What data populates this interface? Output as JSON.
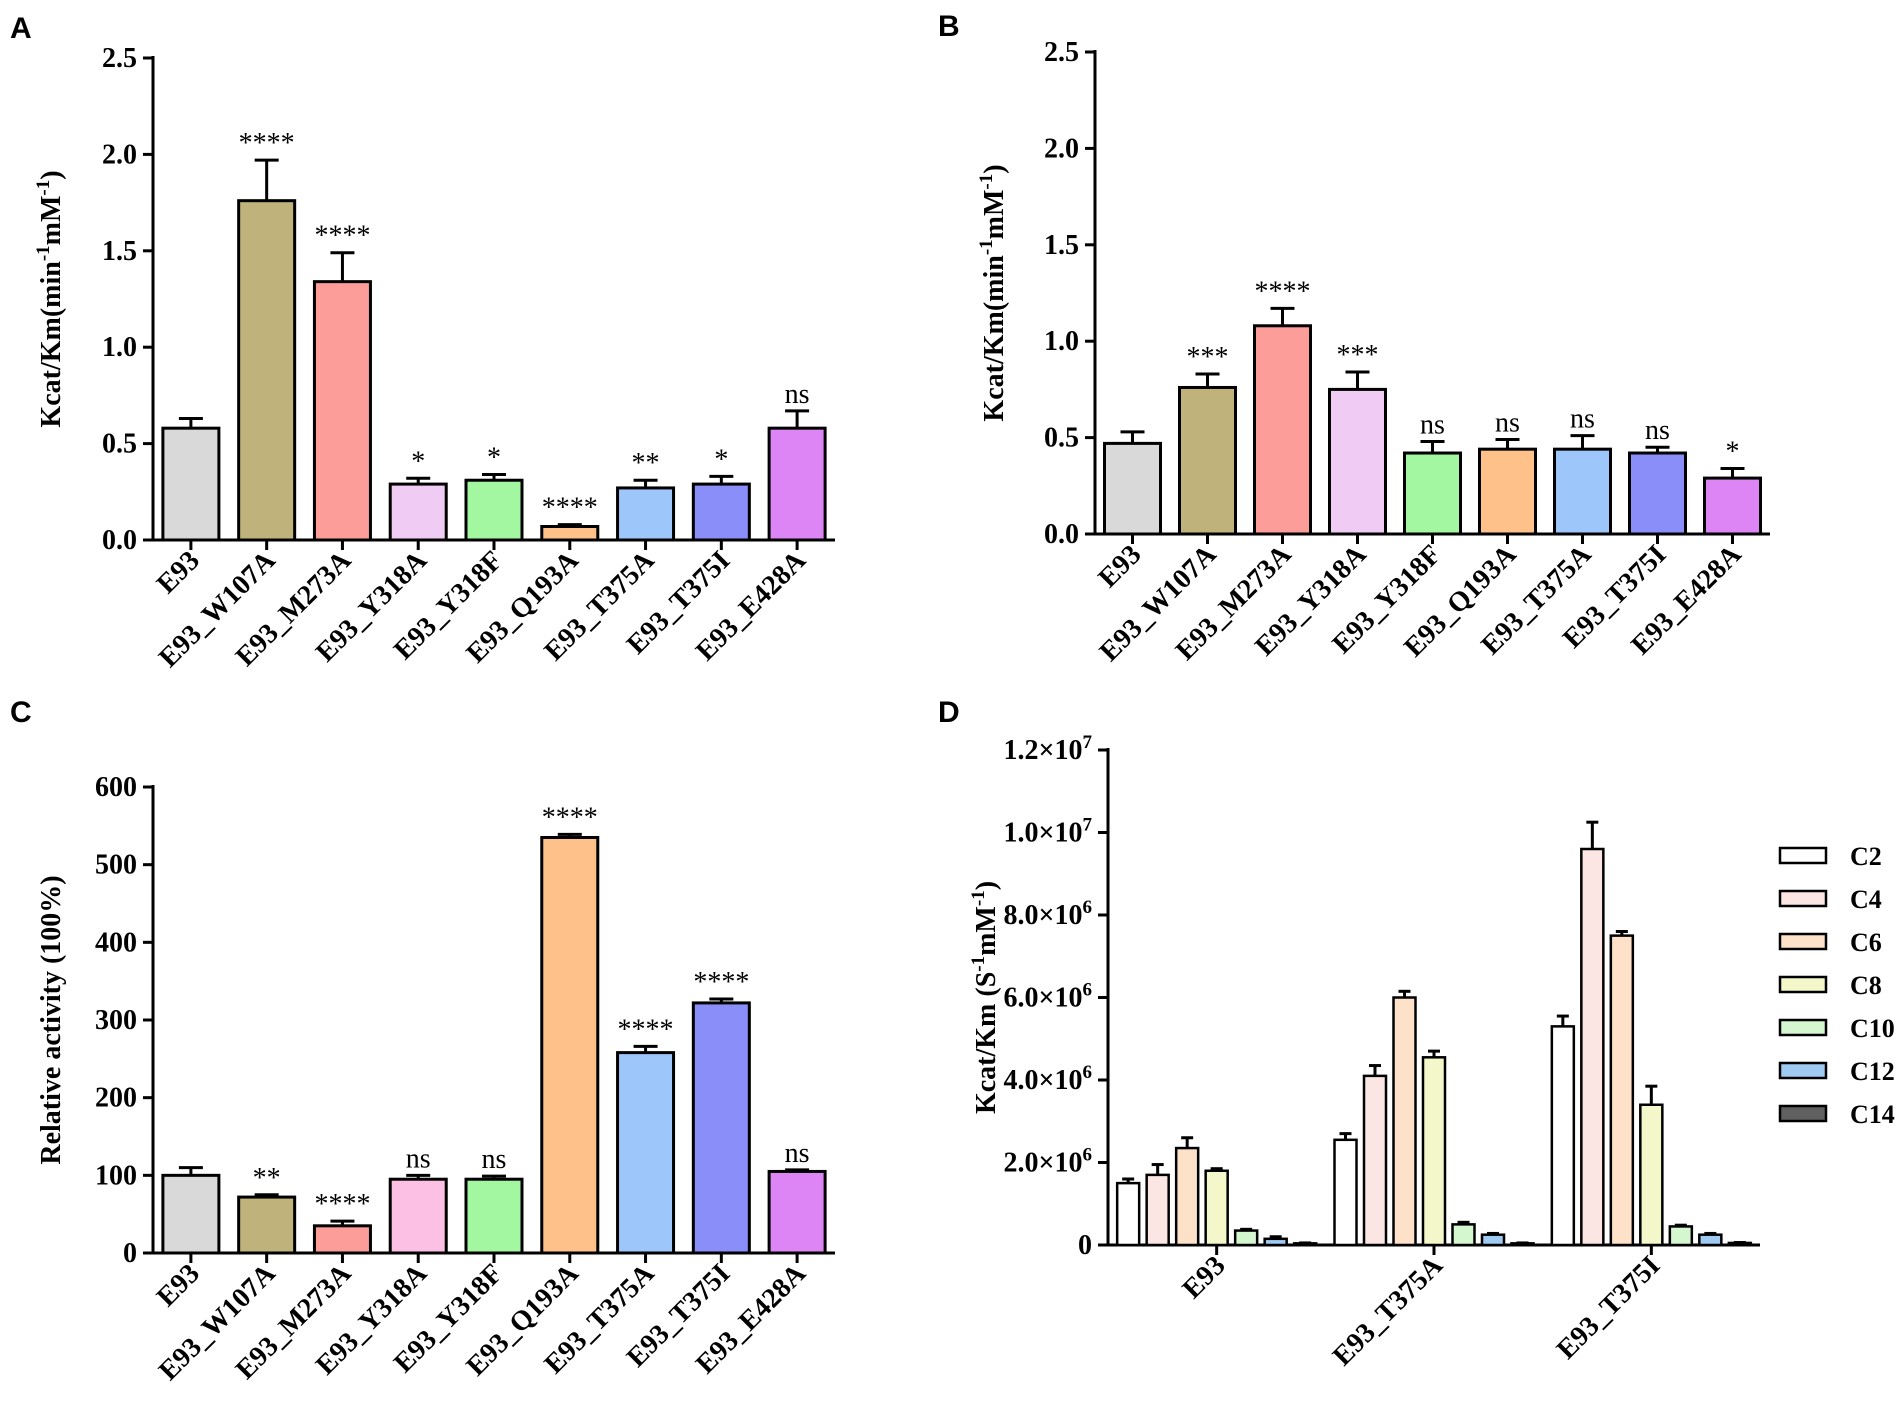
{
  "panels": [
    {
      "letter": "A"
    },
    {
      "letter": "B"
    },
    {
      "letter": "C"
    },
    {
      "letter": "D"
    }
  ],
  "chart_data": [
    {
      "panel": "A",
      "type": "bar",
      "ylabel": "Kcat/Km(min-1mM-1)",
      "ylabel_base": "Kcat/Km(min",
      "ylabel_sup1": "-1",
      "ylabel_mid": "mM",
      "ylabel_sup2": "-1",
      "ylabel_end": ")",
      "ylim": [
        0,
        2.5
      ],
      "yticks": [
        "0.0",
        "0.5",
        "1.0",
        "1.5",
        "2.0",
        "2.5"
      ],
      "categories": [
        "E93",
        "E93_W107A",
        "E93_M273A",
        "E93_Y318A",
        "E93_Y318F",
        "E93_Q193A",
        "E93_T375A",
        "E93_T375I",
        "E93_E428A"
      ],
      "values": [
        0.58,
        1.76,
        1.34,
        0.29,
        0.31,
        0.07,
        0.27,
        0.29,
        0.58
      ],
      "errors": [
        0.05,
        0.21,
        0.15,
        0.03,
        0.03,
        0.01,
        0.04,
        0.04,
        0.09
      ],
      "significance": [
        "",
        "****",
        "****",
        "*",
        "*",
        "****",
        "**",
        "*",
        "ns"
      ],
      "colors": [
        "#d9d9d9",
        "#bfb27a",
        "#fc9d9a",
        "#f0ccf4",
        "#a3f7a0",
        "#fec189",
        "#9dc7fb",
        "#8a8ef8",
        "#de85f6"
      ]
    },
    {
      "panel": "B",
      "type": "bar",
      "ylabel": "Kcat/Km(min-1mM-1)",
      "ylabel_base": "Kcat/Km(min",
      "ylabel_sup1": "-1",
      "ylabel_mid": "mM",
      "ylabel_sup2": "-1",
      "ylabel_end": ")",
      "ylim": [
        0,
        2.5
      ],
      "yticks": [
        "0.0",
        "0.5",
        "1.0",
        "1.5",
        "2.0",
        "2.5"
      ],
      "categories": [
        "E93",
        "E93_W107A",
        "E93_M273A",
        "E93_Y318A",
        "E93_Y318F",
        "E93_Q193A",
        "E93_T375A",
        "E93_T375I",
        "E93_E428A"
      ],
      "values": [
        0.47,
        0.76,
        1.08,
        0.75,
        0.42,
        0.44,
        0.44,
        0.42,
        0.29
      ],
      "errors": [
        0.06,
        0.07,
        0.09,
        0.09,
        0.06,
        0.05,
        0.07,
        0.03,
        0.05
      ],
      "significance": [
        "",
        "***",
        "****",
        "***",
        "ns",
        "ns",
        "ns",
        "ns",
        "*"
      ],
      "colors": [
        "#d9d9d9",
        "#bfb27a",
        "#fc9d9a",
        "#f0ccf4",
        "#a3f7a0",
        "#fec189",
        "#9dc7fb",
        "#8a8ef8",
        "#de85f6"
      ]
    },
    {
      "panel": "C",
      "type": "bar",
      "ylabel": "Relative activity (100%)",
      "ylim": [
        0,
        600
      ],
      "yticks": [
        "0",
        "100",
        "200",
        "300",
        "400",
        "500",
        "600"
      ],
      "categories": [
        "E93",
        "E93_W107A",
        "E93_M273A",
        "E93_Y318A",
        "E93_Y318F",
        "E93_Q193A",
        "E93_T375A",
        "E93_T375I",
        "E93_E428A"
      ],
      "values": [
        100,
        72,
        35,
        95,
        95,
        535,
        258,
        322,
        105
      ],
      "errors": [
        10,
        3,
        6,
        5,
        4,
        4,
        8,
        5,
        2
      ],
      "significance": [
        "",
        "**",
        "****",
        "ns",
        "ns",
        "****",
        "****",
        "****",
        "ns"
      ],
      "colors": [
        "#d9d9d9",
        "#bfb27a",
        "#fc9d9a",
        "#fcc0e4",
        "#a3f7a0",
        "#fec189",
        "#9dc7fb",
        "#8a8ef8",
        "#de85f6"
      ]
    },
    {
      "panel": "D",
      "type": "bar",
      "ylabel": "Kcat/Km (S-1mM-1)",
      "ylabel_base": "Kcat/Km (S",
      "ylabel_sup1": "-1",
      "ylabel_mid": "mM",
      "ylabel_sup2": "-1",
      "ylabel_end": ")",
      "ylim": [
        0,
        12000000
      ],
      "yticks": [
        {
          "mant": "0",
          "exp": ""
        },
        {
          "mant": "2.0×10",
          "exp": "6"
        },
        {
          "mant": "4.0×10",
          "exp": "6"
        },
        {
          "mant": "6.0×10",
          "exp": "6"
        },
        {
          "mant": "8.0×10",
          "exp": "6"
        },
        {
          "mant": "1.0×10",
          "exp": "7"
        },
        {
          "mant": "1.2×10",
          "exp": "7"
        }
      ],
      "categories": [
        "E93",
        "E93_T375A",
        "E93_T375I"
      ],
      "series": [
        {
          "name": "C2",
          "color": "#ffffff",
          "values": [
            1500000,
            2550000,
            5300000
          ],
          "errors": [
            100000,
            150000,
            250000
          ]
        },
        {
          "name": "C4",
          "color": "#fce6e4",
          "values": [
            1700000,
            4100000,
            9600000
          ],
          "errors": [
            250000,
            250000,
            650000
          ]
        },
        {
          "name": "C6",
          "color": "#fde1c9",
          "values": [
            2350000,
            6000000,
            7500000
          ],
          "errors": [
            250000,
            150000,
            100000
          ]
        },
        {
          "name": "C8",
          "color": "#f3f7c9",
          "values": [
            1800000,
            4550000,
            3400000
          ],
          "errors": [
            50000,
            150000,
            450000
          ]
        },
        {
          "name": "C10",
          "color": "#d4f7cf",
          "values": [
            350000,
            500000,
            450000
          ],
          "errors": [
            30000,
            50000,
            30000
          ]
        },
        {
          "name": "C12",
          "color": "#9fcbf2",
          "values": [
            150000,
            250000,
            250000
          ],
          "errors": [
            50000,
            30000,
            30000
          ]
        },
        {
          "name": "C14",
          "color": "#606060",
          "values": [
            40000,
            40000,
            50000
          ],
          "errors": [
            10000,
            10000,
            10000
          ]
        }
      ]
    }
  ]
}
